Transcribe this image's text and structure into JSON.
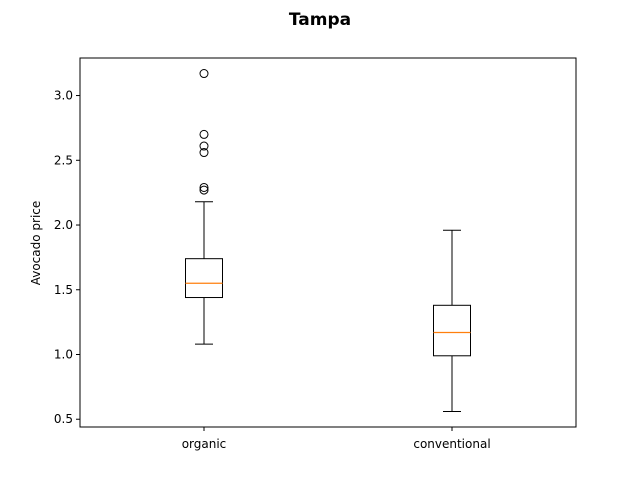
{
  "chart_data": {
    "type": "box",
    "title": "Tampa",
    "xlabel": "",
    "ylabel": "Avocado price",
    "ylim": [
      0.44,
      3.29
    ],
    "yticks": [
      "0.5",
      "1.0",
      "1.5",
      "2.0",
      "2.5",
      "3.0"
    ],
    "categories": [
      "organic",
      "conventional"
    ],
    "boxes": [
      {
        "category": "organic",
        "whisker_low": 1.08,
        "q1": 1.44,
        "median": 1.55,
        "q3": 1.74,
        "whisker_high": 2.18,
        "outliers": [
          2.27,
          2.29,
          2.56,
          2.61,
          2.7,
          3.17
        ]
      },
      {
        "category": "conventional",
        "whisker_low": 0.56,
        "q1": 0.99,
        "median": 1.17,
        "q3": 1.38,
        "whisker_high": 1.96,
        "outliers": []
      }
    ],
    "colors": {
      "box": "#000000",
      "median": "#ff7f0e",
      "outlier": "#000000"
    },
    "grid": false,
    "legend": "none"
  }
}
